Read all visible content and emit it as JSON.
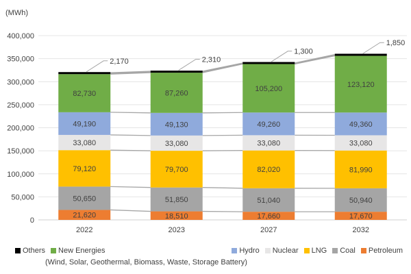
{
  "chart_data": {
    "type": "bar",
    "stacked": true,
    "unit_label": "(MWh)",
    "categories": [
      "2022",
      "2023",
      "2027",
      "2032"
    ],
    "ylim": [
      0,
      400000
    ],
    "yticks": [
      "0",
      "50,000",
      "100,000",
      "150,000",
      "200,000",
      "250,000",
      "300,000",
      "350,000",
      "400,000"
    ],
    "grid": true,
    "legend_position": "bottom",
    "series": [
      {
        "name": "Petroleum",
        "color": "#ED7D31",
        "values": [
          21620,
          18510,
          17660,
          17670
        ],
        "labels": [
          "21,620",
          "18,510",
          "17,660",
          "17,670"
        ]
      },
      {
        "name": "Coal",
        "color": "#A5A5A5",
        "values": [
          50650,
          51850,
          51040,
          50940
        ],
        "labels": [
          "50,650",
          "51,850",
          "51,040",
          "50,940"
        ]
      },
      {
        "name": "LNG",
        "color": "#FFC000",
        "values": [
          79120,
          79700,
          82020,
          81990
        ],
        "labels": [
          "79,120",
          "79,700",
          "82,020",
          "81,990"
        ]
      },
      {
        "name": "Nuclear",
        "color": "#E7E6E6",
        "values": [
          33080,
          33080,
          33080,
          33080
        ],
        "labels": [
          "33,080",
          "33,080",
          "33,080",
          "33,080"
        ]
      },
      {
        "name": "Hydro",
        "color": "#8FAADC",
        "values": [
          49190,
          49130,
          49260,
          49360
        ],
        "labels": [
          "49,190",
          "49,130",
          "49,260",
          "49,360"
        ]
      },
      {
        "name": "New Energies",
        "color": "#70AD47",
        "values": [
          82730,
          87260,
          105200,
          123120
        ],
        "labels": [
          "82,730",
          "87,260",
          "105,200",
          "123,120"
        ]
      },
      {
        "name": "Others",
        "color": "#000000",
        "values": [
          2170,
          2310,
          1300,
          1850
        ],
        "labels": [
          "2,170",
          "2,310",
          "1,300",
          "1,850"
        ]
      }
    ],
    "legend": {
      "left_items": [
        "Others",
        "New Energies"
      ],
      "left_sub": "(Wind, Solar, Geothermal, Biomass, Waste, Storage Battery)",
      "right_items": [
        "Hydro",
        "Nuclear",
        "LNG",
        "Coal",
        "Petroleum"
      ]
    }
  }
}
